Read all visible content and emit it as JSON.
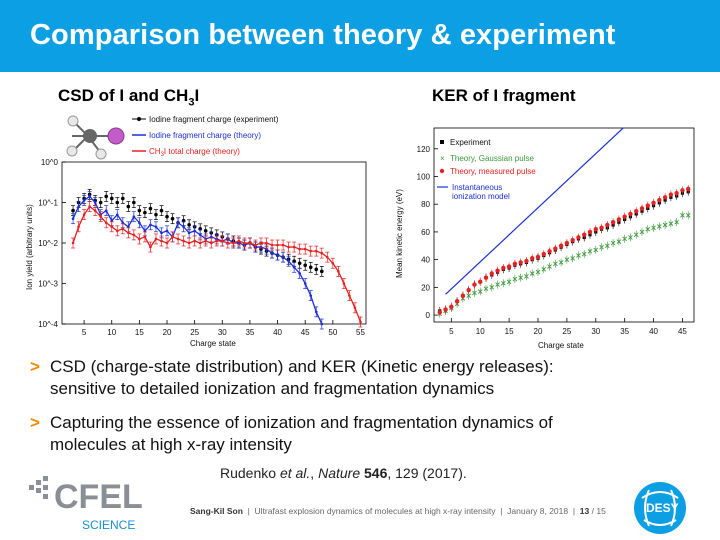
{
  "header": {
    "title": "Comparison between theory & experiment"
  },
  "left_panel": {
    "subtitle_a": "CSD of I and CH",
    "subtitle_sub": "3",
    "subtitle_b": "I",
    "legend": [
      "Iodine fragment charge (experiment)",
      "Iodine fragment charge (theory)",
      "CH3I total charge (theory)"
    ],
    "legend_ch3i_a": "CH",
    "legend_ch3i_sub": "3",
    "legend_ch3i_b": "I total charge (theory)"
  },
  "right_panel": {
    "subtitle": "KER of I fragment",
    "legend": [
      "Experiment",
      "Theory, Gaussian pulse",
      "Theory, measured pulse",
      "Instantaneous",
      "ionization model"
    ]
  },
  "bullets": [
    {
      "line1": "CSD (charge-state distribution) and KER (Kinetic energy releases):",
      "line2": "sensitive to detailed ionization and fragmentation dynamics"
    },
    {
      "line1": "Capturing the essence of ionization and fragmentation dynamics of",
      "line2": "molecules at high x-ray intensity"
    }
  ],
  "reference": {
    "authors": "Rudenko ",
    "etal": "et al.",
    "sep": ", ",
    "journal": "Nature",
    "volume": "546",
    "rest": ", 129 (2017)."
  },
  "footer": {
    "author": "Sang-Kil Son",
    "talk": "Ultrafast explosion dynamics of molecules at high x-ray intensity",
    "date": "January 8, 2018",
    "page": "13",
    "total": "15"
  },
  "logos": {
    "left_main": "CFEL",
    "left_sub": "SCIENCE",
    "right": "DESY"
  },
  "colors": {
    "accent": "#0d9fe3",
    "bullet": "#f08a00",
    "experiment": "#000000",
    "theory_blue": "#1a2fd6",
    "theory_red": "#e8201f",
    "theory_green": "#3a9a3a"
  },
  "chart_data": [
    {
      "type": "line",
      "xlabel": "Charge state",
      "ylabel": "Ion yield  (arbitrary units)",
      "xlim": [
        1,
        56
      ],
      "ylim_log10": [
        -4,
        0
      ],
      "yscale": "log",
      "x_ticks": [
        5,
        10,
        15,
        20,
        25,
        30,
        35,
        40,
        45,
        50,
        55
      ],
      "y_tick_labels": [
        "10^0",
        "10^-1",
        "10^-2",
        "10^-3",
        "10^-4"
      ],
      "series": [
        {
          "name": "Iodine fragment charge (experiment)",
          "color": "#000000",
          "x": [
            3,
            4,
            5,
            6,
            7,
            8,
            9,
            10,
            11,
            12,
            13,
            14,
            15,
            16,
            17,
            18,
            19,
            20,
            21,
            22,
            23,
            24,
            25,
            26,
            27,
            28,
            29,
            30,
            31,
            32,
            33,
            34,
            35,
            36,
            37,
            38,
            39,
            40,
            41,
            42,
            43,
            44,
            45,
            46,
            47,
            48
          ],
          "log10_y": [
            -1.2,
            -1.0,
            -0.9,
            -0.8,
            -0.95,
            -1.0,
            -0.85,
            -0.9,
            -1.0,
            -0.9,
            -1.1,
            -1.0,
            -1.2,
            -1.25,
            -1.15,
            -1.3,
            -1.2,
            -1.35,
            -1.4,
            -1.5,
            -1.45,
            -1.55,
            -1.6,
            -1.65,
            -1.7,
            -1.75,
            -1.8,
            -1.85,
            -1.9,
            -1.95,
            -2.0,
            -2.05,
            -2.0,
            -2.1,
            -2.15,
            -2.2,
            -2.25,
            -2.3,
            -2.35,
            -2.4,
            -2.45,
            -2.5,
            -2.55,
            -2.6,
            -2.65,
            -2.7
          ]
        },
        {
          "name": "Iodine fragment charge (theory)",
          "color": "#1a2fd6",
          "x": [
            3,
            4,
            5,
            6,
            7,
            8,
            9,
            10,
            11,
            12,
            13,
            14,
            15,
            16,
            17,
            18,
            19,
            20,
            21,
            22,
            23,
            24,
            25,
            26,
            27,
            28,
            29,
            30,
            31,
            32,
            33,
            34,
            35,
            36,
            37,
            38,
            39,
            40,
            41,
            42,
            43,
            44,
            45,
            46,
            47,
            48
          ],
          "log10_y": [
            -1.4,
            -1.1,
            -0.95,
            -0.85,
            -1.0,
            -1.3,
            -1.2,
            -1.45,
            -1.3,
            -1.5,
            -1.6,
            -1.35,
            -1.5,
            -1.7,
            -1.55,
            -1.6,
            -1.75,
            -1.7,
            -1.85,
            -1.5,
            -1.6,
            -1.75,
            -1.7,
            -1.8,
            -1.9,
            -1.85,
            -1.9,
            -1.95,
            -1.9,
            -2.0,
            -2.0,
            -2.05,
            -2.0,
            -2.1,
            -2.1,
            -2.15,
            -2.25,
            -2.3,
            -2.35,
            -2.45,
            -2.6,
            -2.75,
            -3.0,
            -3.3,
            -3.7,
            -4.0
          ]
        },
        {
          "name": "CH3I total charge (theory)",
          "color": "#e8201f",
          "x": [
            3,
            4,
            5,
            6,
            7,
            8,
            9,
            10,
            11,
            12,
            13,
            14,
            15,
            16,
            17,
            18,
            19,
            20,
            21,
            22,
            23,
            24,
            25,
            26,
            27,
            28,
            29,
            30,
            31,
            32,
            33,
            34,
            35,
            36,
            37,
            38,
            39,
            40,
            41,
            42,
            43,
            44,
            45,
            46,
            47,
            48,
            49,
            50,
            51,
            52,
            53,
            54,
            55
          ],
          "log10_y": [
            -2.0,
            -1.6,
            -1.3,
            -1.1,
            -1.2,
            -1.35,
            -1.5,
            -1.6,
            -1.7,
            -1.65,
            -1.75,
            -1.8,
            -1.9,
            -1.85,
            -2.1,
            -1.9,
            -1.95,
            -2.0,
            -1.85,
            -1.9,
            -1.95,
            -2.0,
            -1.95,
            -2.0,
            -1.95,
            -2.0,
            -1.95,
            -1.95,
            -2.0,
            -2.0,
            -1.95,
            -2.0,
            -2.0,
            -2.05,
            -2.0,
            -2.0,
            -2.05,
            -2.05,
            -2.05,
            -2.1,
            -2.1,
            -2.15,
            -2.15,
            -2.2,
            -2.2,
            -2.25,
            -2.35,
            -2.5,
            -2.7,
            -3.0,
            -3.3,
            -3.6,
            -3.95
          ]
        }
      ]
    },
    {
      "type": "line",
      "xlabel": "Charge state",
      "ylabel": "Mean kinetic energy (eV)",
      "xlim": [
        2,
        47
      ],
      "ylim": [
        -5,
        135
      ],
      "x_ticks": [
        5,
        10,
        15,
        20,
        25,
        30,
        35,
        40,
        45
      ],
      "y_ticks": [
        0,
        20,
        40,
        60,
        80,
        100,
        120
      ],
      "series": [
        {
          "name": "Experiment",
          "color": "#000000",
          "x": [
            3,
            4,
            5,
            6,
            7,
            8,
            9,
            10,
            11,
            12,
            13,
            14,
            15,
            16,
            17,
            18,
            19,
            20,
            21,
            22,
            23,
            24,
            25,
            26,
            27,
            28,
            29,
            30,
            31,
            32,
            33,
            34,
            35,
            36,
            37,
            38,
            39,
            40,
            41,
            42,
            43,
            44,
            45,
            46
          ],
          "y": [
            3,
            4,
            6,
            10,
            14,
            18,
            22,
            24,
            27,
            29,
            31,
            33,
            34,
            36,
            37,
            38,
            40,
            41,
            43,
            45,
            47,
            49,
            51,
            53,
            55,
            56,
            58,
            60,
            62,
            63,
            65,
            67,
            69,
            71,
            73,
            75,
            77,
            79,
            81,
            83,
            85,
            86,
            88,
            89
          ]
        },
        {
          "name": "Theory, Gaussian pulse",
          "color": "#3a9a3a",
          "x": [
            3,
            4,
            5,
            6,
            7,
            8,
            9,
            10,
            11,
            12,
            13,
            14,
            15,
            16,
            17,
            18,
            19,
            20,
            21,
            22,
            23,
            24,
            25,
            26,
            27,
            28,
            29,
            30,
            31,
            32,
            33,
            34,
            35,
            36,
            37,
            38,
            39,
            40,
            41,
            42,
            43,
            44,
            45,
            46
          ],
          "y": [
            1,
            3,
            5,
            8,
            12,
            14,
            16,
            17,
            19,
            20,
            22,
            23,
            24,
            26,
            27,
            28,
            30,
            31,
            33,
            35,
            37,
            38,
            40,
            41,
            43,
            44,
            46,
            47,
            49,
            50,
            52,
            53,
            55,
            56,
            58,
            60,
            62,
            63,
            64,
            65,
            66,
            67,
            72,
            72
          ]
        },
        {
          "name": "Theory, measured pulse",
          "color": "#e8201f",
          "x": [
            3,
            4,
            5,
            6,
            7,
            8,
            9,
            10,
            11,
            12,
            13,
            14,
            15,
            16,
            17,
            18,
            19,
            20,
            21,
            22,
            23,
            24,
            25,
            26,
            27,
            28,
            29,
            30,
            31,
            32,
            33,
            34,
            35,
            36,
            37,
            38,
            39,
            40,
            41,
            42,
            43,
            44,
            45,
            46
          ],
          "y": [
            2,
            4,
            6,
            10,
            14,
            18,
            22,
            24,
            27,
            30,
            32,
            34,
            35,
            37,
            38,
            39,
            41,
            42,
            44,
            46,
            48,
            50,
            52,
            54,
            56,
            58,
            60,
            62,
            63,
            65,
            67,
            69,
            71,
            73,
            75,
            77,
            79,
            81,
            83,
            85,
            87,
            88,
            90,
            91
          ]
        },
        {
          "name": "Instantaneous ionization model",
          "color": "#1a2fd6",
          "x": [
            4,
            35
          ],
          "y": [
            15,
            136
          ]
        }
      ]
    }
  ]
}
